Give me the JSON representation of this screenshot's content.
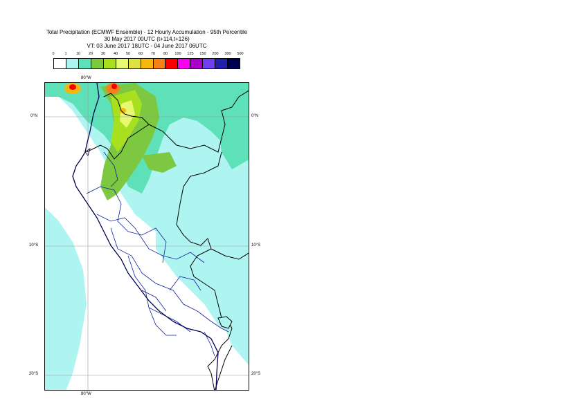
{
  "title": {
    "line1": "Total Precipitation (ECMWF Ensemble) - 12 Hourly Accumulation - 95th Percentile",
    "line2": "30 May 2017 00UTC (t+114,t+126)",
    "line3": "VT: 03 June 2017 18UTC - 04 June 2017 06UTC"
  },
  "legend": {
    "labels": [
      "0",
      "1",
      "10",
      "20",
      "30",
      "40",
      "50",
      "60",
      "70",
      "80",
      "100",
      "125",
      "150",
      "200",
      "300",
      "500"
    ],
    "colors": [
      "#ffffff",
      "#aef4f0",
      "#5ee0b8",
      "#7cc840",
      "#a8e020",
      "#e8f870",
      "#e0e040",
      "#f4b810",
      "#f88018",
      "#f80000",
      "#f800f0",
      "#a800c8",
      "#7040f0",
      "#2020a8",
      "#000050"
    ]
  },
  "axes": {
    "lon_top": "80°W",
    "lon_bottom": "80°W",
    "lat_left": [
      "0°N",
      "10°S",
      "20°S"
    ],
    "lat_right": [
      "0°N",
      "10°S",
      "20°S"
    ]
  }
}
